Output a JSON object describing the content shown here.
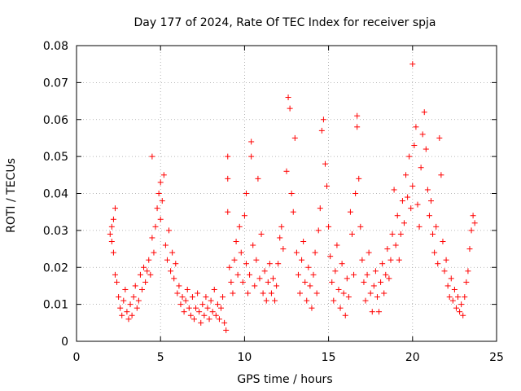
{
  "chart_data": {
    "type": "scatter",
    "title": "Day 177 of 2024, Rate Of TEC Index for receiver spja",
    "xlabel": "GPS time / hours",
    "ylabel": "ROTI / TECUs",
    "xlim": [
      0,
      25
    ],
    "ylim": [
      0,
      0.08
    ],
    "grid": true,
    "marker": "+",
    "color": "#ff0000",
    "x_ticks": [
      0,
      5,
      10,
      15,
      20,
      25
    ],
    "x_tick_labels": [
      "0",
      "5",
      "10",
      "15",
      "20",
      "25"
    ],
    "y_ticks": [
      0,
      0.01,
      0.02,
      0.03,
      0.04,
      0.05,
      0.06,
      0.07,
      0.08
    ],
    "y_tick_labels": [
      "0",
      "0.01",
      "0.02",
      "0.03",
      "0.04",
      "0.05",
      "0.06",
      "0.07",
      "0.08"
    ],
    "series": [
      {
        "name": "ROTI",
        "points": [
          [
            2.0,
            0.029
          ],
          [
            2.1,
            0.031
          ],
          [
            2.1,
            0.027
          ],
          [
            2.2,
            0.033
          ],
          [
            2.2,
            0.024
          ],
          [
            2.3,
            0.036
          ],
          [
            2.3,
            0.018
          ],
          [
            2.4,
            0.016
          ],
          [
            2.5,
            0.012
          ],
          [
            2.6,
            0.009
          ],
          [
            2.7,
            0.007
          ],
          [
            2.8,
            0.011
          ],
          [
            2.9,
            0.014
          ],
          [
            3.0,
            0.008
          ],
          [
            3.1,
            0.006
          ],
          [
            3.2,
            0.01
          ],
          [
            3.3,
            0.007
          ],
          [
            3.4,
            0.012
          ],
          [
            3.5,
            0.015
          ],
          [
            3.6,
            0.009
          ],
          [
            3.7,
            0.011
          ],
          [
            3.8,
            0.018
          ],
          [
            3.9,
            0.014
          ],
          [
            4.0,
            0.02
          ],
          [
            4.1,
            0.016
          ],
          [
            4.2,
            0.019
          ],
          [
            4.3,
            0.022
          ],
          [
            4.4,
            0.018
          ],
          [
            4.5,
            0.028
          ],
          [
            4.5,
            0.05
          ],
          [
            4.6,
            0.024
          ],
          [
            4.7,
            0.031
          ],
          [
            4.8,
            0.036
          ],
          [
            4.9,
            0.04
          ],
          [
            5.0,
            0.043
          ],
          [
            5.0,
            0.033
          ],
          [
            5.1,
            0.038
          ],
          [
            5.2,
            0.045
          ],
          [
            5.3,
            0.026
          ],
          [
            5.4,
            0.022
          ],
          [
            5.5,
            0.03
          ],
          [
            5.6,
            0.019
          ],
          [
            5.7,
            0.024
          ],
          [
            5.8,
            0.017
          ],
          [
            5.9,
            0.021
          ],
          [
            6.0,
            0.013
          ],
          [
            6.1,
            0.015
          ],
          [
            6.2,
            0.01
          ],
          [
            6.3,
            0.012
          ],
          [
            6.4,
            0.008
          ],
          [
            6.5,
            0.011
          ],
          [
            6.6,
            0.014
          ],
          [
            6.7,
            0.009
          ],
          [
            6.8,
            0.007
          ],
          [
            6.9,
            0.012
          ],
          [
            7.0,
            0.006
          ],
          [
            7.1,
            0.009
          ],
          [
            7.2,
            0.013
          ],
          [
            7.3,
            0.008
          ],
          [
            7.4,
            0.005
          ],
          [
            7.5,
            0.01
          ],
          [
            7.6,
            0.007
          ],
          [
            7.7,
            0.012
          ],
          [
            7.8,
            0.009
          ],
          [
            7.9,
            0.006
          ],
          [
            8.0,
            0.011
          ],
          [
            8.1,
            0.008
          ],
          [
            8.2,
            0.014
          ],
          [
            8.3,
            0.007
          ],
          [
            8.4,
            0.01
          ],
          [
            8.5,
            0.006
          ],
          [
            8.6,
            0.009
          ],
          [
            8.7,
            0.012
          ],
          [
            8.8,
            0.005
          ],
          [
            8.9,
            0.003
          ],
          [
            9.0,
            0.035
          ],
          [
            9.0,
            0.044
          ],
          [
            9.0,
            0.05
          ],
          [
            9.1,
            0.02
          ],
          [
            9.2,
            0.016
          ],
          [
            9.3,
            0.013
          ],
          [
            9.4,
            0.022
          ],
          [
            9.5,
            0.027
          ],
          [
            9.6,
            0.018
          ],
          [
            9.7,
            0.031
          ],
          [
            9.8,
            0.024
          ],
          [
            9.9,
            0.016
          ],
          [
            10.0,
            0.034
          ],
          [
            10.1,
            0.04
          ],
          [
            10.1,
            0.021
          ],
          [
            10.2,
            0.013
          ],
          [
            10.3,
            0.018
          ],
          [
            10.4,
            0.05
          ],
          [
            10.4,
            0.054
          ],
          [
            10.5,
            0.026
          ],
          [
            10.6,
            0.015
          ],
          [
            10.7,
            0.022
          ],
          [
            10.8,
            0.044
          ],
          [
            10.9,
            0.017
          ],
          [
            11.0,
            0.029
          ],
          [
            11.1,
            0.013
          ],
          [
            11.2,
            0.019
          ],
          [
            11.3,
            0.011
          ],
          [
            11.4,
            0.016
          ],
          [
            11.5,
            0.021
          ],
          [
            11.6,
            0.013
          ],
          [
            11.7,
            0.017
          ],
          [
            11.8,
            0.011
          ],
          [
            11.9,
            0.015
          ],
          [
            12.0,
            0.021
          ],
          [
            12.1,
            0.028
          ],
          [
            12.2,
            0.031
          ],
          [
            12.3,
            0.025
          ],
          [
            12.5,
            0.046
          ],
          [
            12.6,
            0.066
          ],
          [
            12.7,
            0.063
          ],
          [
            12.8,
            0.04
          ],
          [
            12.9,
            0.035
          ],
          [
            13.0,
            0.055
          ],
          [
            13.1,
            0.024
          ],
          [
            13.2,
            0.018
          ],
          [
            13.3,
            0.013
          ],
          [
            13.4,
            0.022
          ],
          [
            13.5,
            0.027
          ],
          [
            13.6,
            0.016
          ],
          [
            13.7,
            0.011
          ],
          [
            13.8,
            0.02
          ],
          [
            13.9,
            0.015
          ],
          [
            14.0,
            0.009
          ],
          [
            14.1,
            0.018
          ],
          [
            14.2,
            0.024
          ],
          [
            14.3,
            0.013
          ],
          [
            14.4,
            0.03
          ],
          [
            14.5,
            0.036
          ],
          [
            14.6,
            0.057
          ],
          [
            14.7,
            0.06
          ],
          [
            14.8,
            0.048
          ],
          [
            14.9,
            0.042
          ],
          [
            15.0,
            0.031
          ],
          [
            15.1,
            0.023
          ],
          [
            15.2,
            0.016
          ],
          [
            15.3,
            0.011
          ],
          [
            15.4,
            0.019
          ],
          [
            15.5,
            0.026
          ],
          [
            15.6,
            0.014
          ],
          [
            15.7,
            0.009
          ],
          [
            15.8,
            0.021
          ],
          [
            15.9,
            0.013
          ],
          [
            16.0,
            0.007
          ],
          [
            16.1,
            0.017
          ],
          [
            16.2,
            0.012
          ],
          [
            16.3,
            0.035
          ],
          [
            16.4,
            0.029
          ],
          [
            16.5,
            0.018
          ],
          [
            16.6,
            0.04
          ],
          [
            16.7,
            0.058
          ],
          [
            16.7,
            0.061
          ],
          [
            16.8,
            0.044
          ],
          [
            16.9,
            0.031
          ],
          [
            17.0,
            0.022
          ],
          [
            17.1,
            0.016
          ],
          [
            17.2,
            0.011
          ],
          [
            17.3,
            0.018
          ],
          [
            17.4,
            0.024
          ],
          [
            17.5,
            0.013
          ],
          [
            17.6,
            0.008
          ],
          [
            17.7,
            0.015
          ],
          [
            17.8,
            0.019
          ],
          [
            17.9,
            0.012
          ],
          [
            18.0,
            0.008
          ],
          [
            18.1,
            0.016
          ],
          [
            18.2,
            0.021
          ],
          [
            18.3,
            0.013
          ],
          [
            18.4,
            0.018
          ],
          [
            18.5,
            0.025
          ],
          [
            18.6,
            0.017
          ],
          [
            18.7,
            0.022
          ],
          [
            18.8,
            0.029
          ],
          [
            18.9,
            0.041
          ],
          [
            19.0,
            0.026
          ],
          [
            19.1,
            0.034
          ],
          [
            19.2,
            0.022
          ],
          [
            19.3,
            0.029
          ],
          [
            19.4,
            0.038
          ],
          [
            19.5,
            0.032
          ],
          [
            19.6,
            0.045
          ],
          [
            19.7,
            0.039
          ],
          [
            19.8,
            0.05
          ],
          [
            19.9,
            0.036
          ],
          [
            20.0,
            0.042
          ],
          [
            20.0,
            0.075
          ],
          [
            20.1,
            0.053
          ],
          [
            20.2,
            0.058
          ],
          [
            20.3,
            0.037
          ],
          [
            20.4,
            0.031
          ],
          [
            20.5,
            0.047
          ],
          [
            20.6,
            0.056
          ],
          [
            20.7,
            0.062
          ],
          [
            20.8,
            0.052
          ],
          [
            20.9,
            0.041
          ],
          [
            21.0,
            0.034
          ],
          [
            21.1,
            0.038
          ],
          [
            21.2,
            0.029
          ],
          [
            21.3,
            0.024
          ],
          [
            21.4,
            0.031
          ],
          [
            21.5,
            0.021
          ],
          [
            21.6,
            0.055
          ],
          [
            21.7,
            0.045
          ],
          [
            21.8,
            0.027
          ],
          [
            21.9,
            0.019
          ],
          [
            22.0,
            0.022
          ],
          [
            22.1,
            0.015
          ],
          [
            22.2,
            0.012
          ],
          [
            22.3,
            0.017
          ],
          [
            22.4,
            0.011
          ],
          [
            22.5,
            0.014
          ],
          [
            22.6,
            0.009
          ],
          [
            22.7,
            0.012
          ],
          [
            22.8,
            0.008
          ],
          [
            22.9,
            0.01
          ],
          [
            23.0,
            0.007
          ],
          [
            23.1,
            0.012
          ],
          [
            23.2,
            0.016
          ],
          [
            23.3,
            0.019
          ],
          [
            23.4,
            0.025
          ],
          [
            23.5,
            0.03
          ],
          [
            23.6,
            0.034
          ],
          [
            23.7,
            0.032
          ]
        ]
      }
    ]
  }
}
